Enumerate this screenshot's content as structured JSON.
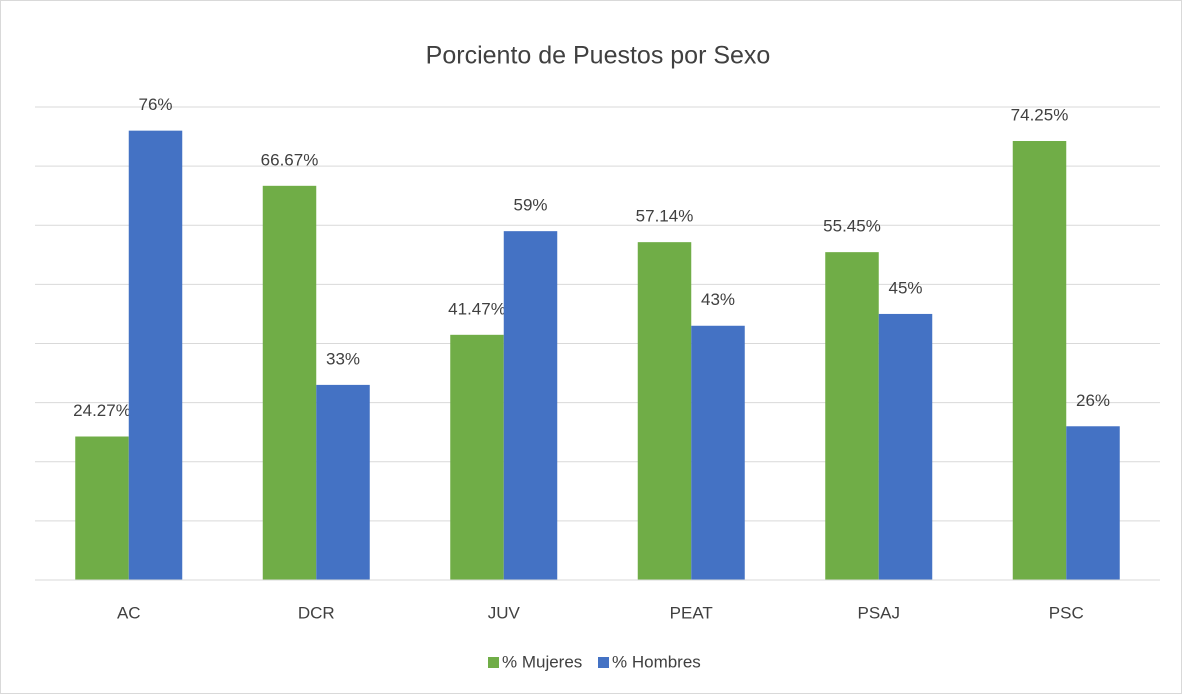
{
  "chart_data": {
    "type": "bar",
    "title": "Porciento de Puestos por Sexo",
    "categories": [
      "AC",
      "DCR",
      "JUV",
      "PEAT",
      "PSAJ",
      "PSC"
    ],
    "series": [
      {
        "name": "% Mujeres",
        "color": "#70ad47",
        "values": [
          24.27,
          66.67,
          41.47,
          57.14,
          55.45,
          74.25
        ],
        "value_labels": [
          "24.27%",
          "66.67%",
          "41.47%",
          "57.14%",
          "55.45%",
          "74.25%"
        ]
      },
      {
        "name": "% Hombres",
        "color": "#4472c4",
        "values": [
          76,
          33,
          59,
          43,
          45,
          26
        ],
        "value_labels": [
          "76%",
          "33%",
          "59%",
          "43%",
          "45%",
          "26%"
        ]
      }
    ],
    "ylim": [
      0,
      80
    ],
    "yticks": [
      0,
      10,
      20,
      30,
      40,
      50,
      60,
      70,
      80
    ],
    "grid": true,
    "legend": "bottom"
  }
}
